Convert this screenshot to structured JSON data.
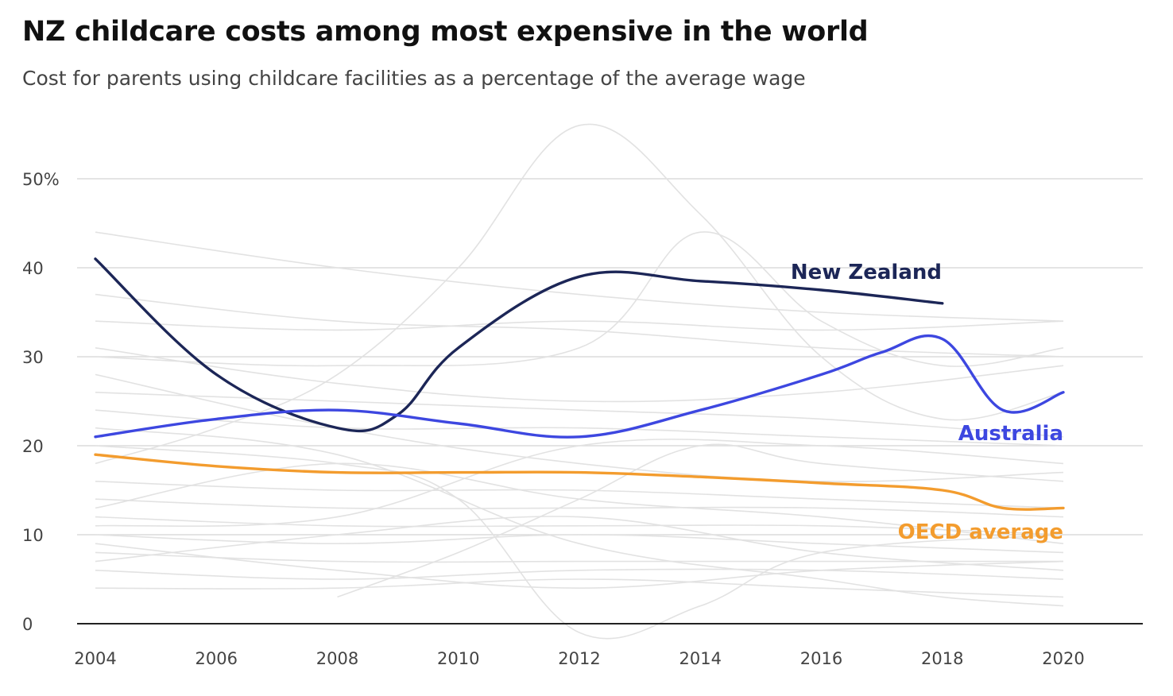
{
  "chart_data": {
    "type": "line",
    "title": "NZ childcare costs among most expensive in the world",
    "subtitle": "Cost for parents using childcare facilities as a percentage of the average wage",
    "xlabel": "",
    "ylabel": "",
    "xlim": [
      2004,
      2021
    ],
    "ylim": [
      0,
      50
    ],
    "x_ticks": [
      2004,
      2006,
      2008,
      2010,
      2012,
      2014,
      2016,
      2018,
      2020
    ],
    "y_ticks": [
      {
        "value": 0,
        "label": "0"
      },
      {
        "value": 10,
        "label": "10"
      },
      {
        "value": 20,
        "label": "20"
      },
      {
        "value": 30,
        "label": "30"
      },
      {
        "value": 40,
        "label": "40"
      },
      {
        "value": 50,
        "label": "50%"
      }
    ],
    "grid": true,
    "series": [
      {
        "name": "New Zealand",
        "color": "#1c2657",
        "label_color": "#1c2657",
        "points": [
          [
            2004,
            41
          ],
          [
            2006,
            28
          ],
          [
            2008,
            22
          ],
          [
            2009,
            23.5
          ],
          [
            2010,
            31
          ],
          [
            2012,
            39
          ],
          [
            2014,
            38.5
          ],
          [
            2016,
            37.5
          ],
          [
            2018,
            36
          ]
        ]
      },
      {
        "name": "Australia",
        "color": "#3d47e0",
        "label_color": "#3d47e0",
        "points": [
          [
            2004,
            21
          ],
          [
            2006,
            23
          ],
          [
            2008,
            24
          ],
          [
            2010,
            22.5
          ],
          [
            2012,
            21
          ],
          [
            2014,
            24
          ],
          [
            2016,
            28
          ],
          [
            2017,
            30.5
          ],
          [
            2018,
            32
          ],
          [
            2019,
            24
          ],
          [
            2020,
            26
          ]
        ]
      },
      {
        "name": "OECD average",
        "color": "#f39c2e",
        "label_color": "#f39c2e",
        "points": [
          [
            2004,
            19
          ],
          [
            2006,
            17.7
          ],
          [
            2008,
            17
          ],
          [
            2010,
            17
          ],
          [
            2012,
            17
          ],
          [
            2014,
            16.5
          ],
          [
            2016,
            15.8
          ],
          [
            2018,
            15
          ],
          [
            2019,
            13
          ],
          [
            2020,
            13
          ]
        ]
      }
    ],
    "background_series_color": "#e2e2e2",
    "background_series": [
      [
        [
          2004,
          44
        ],
        [
          2008,
          40
        ],
        [
          2012,
          37
        ],
        [
          2016,
          35
        ],
        [
          2020,
          34
        ]
      ],
      [
        [
          2004,
          37
        ],
        [
          2008,
          34
        ],
        [
          2012,
          33
        ],
        [
          2016,
          31
        ],
        [
          2020,
          30
        ]
      ],
      [
        [
          2004,
          34
        ],
        [
          2008,
          33
        ],
        [
          2012,
          34
        ],
        [
          2016,
          33
        ],
        [
          2020,
          34
        ]
      ],
      [
        [
          2004,
          31
        ],
        [
          2008,
          27
        ],
        [
          2012,
          25
        ],
        [
          2016,
          26
        ],
        [
          2020,
          29
        ]
      ],
      [
        [
          2004,
          26
        ],
        [
          2008,
          25
        ],
        [
          2012,
          24
        ],
        [
          2016,
          23
        ],
        [
          2020,
          21
        ]
      ],
      [
        [
          2004,
          24
        ],
        [
          2008,
          22
        ],
        [
          2012,
          22
        ],
        [
          2016,
          21
        ],
        [
          2020,
          20
        ]
      ],
      [
        [
          2004,
          18
        ],
        [
          2006,
          22
        ],
        [
          2008,
          28
        ],
        [
          2010,
          40
        ],
        [
          2012,
          56
        ],
        [
          2014,
          46
        ],
        [
          2016,
          30
        ],
        [
          2018,
          23
        ],
        [
          2020,
          26
        ]
      ],
      [
        [
          2004,
          16
        ],
        [
          2008,
          15
        ],
        [
          2012,
          15
        ],
        [
          2016,
          14
        ],
        [
          2020,
          13
        ]
      ],
      [
        [
          2004,
          14
        ],
        [
          2008,
          13
        ],
        [
          2012,
          13
        ],
        [
          2016,
          13
        ],
        [
          2020,
          12
        ]
      ],
      [
        [
          2004,
          12
        ],
        [
          2008,
          11
        ],
        [
          2012,
          11
        ],
        [
          2016,
          11
        ],
        [
          2020,
          10
        ]
      ],
      [
        [
          2004,
          10
        ],
        [
          2008,
          9
        ],
        [
          2012,
          10
        ],
        [
          2016,
          9
        ],
        [
          2020,
          8
        ]
      ],
      [
        [
          2004,
          8
        ],
        [
          2008,
          7
        ],
        [
          2012,
          7
        ],
        [
          2016,
          7
        ],
        [
          2020,
          7
        ]
      ],
      [
        [
          2004,
          6
        ],
        [
          2008,
          5
        ],
        [
          2012,
          6
        ],
        [
          2016,
          6
        ],
        [
          2020,
          5
        ]
      ],
      [
        [
          2004,
          4
        ],
        [
          2008,
          4
        ],
        [
          2012,
          5
        ],
        [
          2016,
          4
        ],
        [
          2020,
          3
        ]
      ],
      [
        [
          2004,
          20
        ],
        [
          2008,
          18
        ],
        [
          2010,
          14
        ],
        [
          2012,
          -1
        ],
        [
          2014,
          2
        ],
        [
          2016,
          8
        ],
        [
          2020,
          10
        ]
      ],
      [
        [
          2004,
          13
        ],
        [
          2008,
          18
        ],
        [
          2012,
          14
        ],
        [
          2016,
          12
        ],
        [
          2020,
          9
        ]
      ],
      [
        [
          2004,
          7
        ],
        [
          2008,
          10
        ],
        [
          2012,
          12
        ],
        [
          2016,
          8
        ],
        [
          2020,
          6
        ]
      ],
      [
        [
          2008,
          3
        ],
        [
          2010,
          8
        ],
        [
          2012,
          14
        ],
        [
          2014,
          20
        ],
        [
          2016,
          18
        ],
        [
          2020,
          16
        ]
      ],
      [
        [
          2004,
          22
        ],
        [
          2008,
          19
        ],
        [
          2012,
          9
        ],
        [
          2016,
          5
        ],
        [
          2018,
          3
        ],
        [
          2020,
          2
        ]
      ],
      [
        [
          2004,
          28
        ],
        [
          2008,
          22
        ],
        [
          2012,
          18
        ],
        [
          2016,
          16
        ],
        [
          2020,
          17
        ]
      ],
      [
        [
          2004,
          11
        ],
        [
          2008,
          12
        ],
        [
          2012,
          20
        ],
        [
          2016,
          20
        ],
        [
          2020,
          18
        ]
      ],
      [
        [
          2004,
          9
        ],
        [
          2008,
          6
        ],
        [
          2012,
          4
        ],
        [
          2016,
          6
        ],
        [
          2020,
          7
        ]
      ],
      [
        [
          2004,
          30
        ],
        [
          2008,
          29
        ],
        [
          2012,
          31
        ],
        [
          2014,
          44
        ],
        [
          2016,
          34
        ],
        [
          2018,
          29
        ],
        [
          2020,
          31
        ]
      ]
    ]
  }
}
